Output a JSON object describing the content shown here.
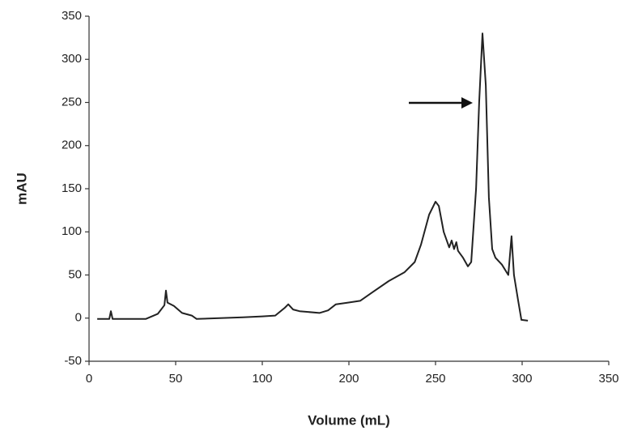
{
  "chart_data": {
    "type": "line",
    "x_label": "Volume (mL)",
    "y_label": "mAU",
    "xlim": [
      0,
      350
    ],
    "xticks": [
      0,
      50,
      100,
      200,
      250,
      300,
      350
    ],
    "ylim": [
      -50,
      350
    ],
    "yticks": [
      -50,
      0,
      50,
      100,
      150,
      200,
      250,
      300,
      350
    ],
    "grid": false,
    "series": [
      {
        "color": "#222222",
        "x": [
          4.7,
          11.7,
          12.6,
          13.6,
          32.7,
          39.7,
          43.5,
          44.4,
          45.3,
          49,
          53.7,
          59.3,
          62.1,
          88.8,
          100,
          115,
          126,
          130,
          135.5,
          143,
          166,
          176,
          185,
          199,
          206.5,
          213.6,
          223,
          232,
          238,
          241.6,
          246.3,
          250,
          251.9,
          254.7,
          257.9,
          259.3,
          260.7,
          262,
          263,
          265.9,
          268.7,
          270.6,
          273.4,
          275.2,
          277.1,
          279,
          280.8,
          282.7,
          284.6,
          288.3,
          292,
          293.9,
          295.3,
          297.7,
          299.6,
          303.3
        ],
        "values": [
          -1,
          -1,
          8,
          -1,
          -1,
          5,
          15,
          32,
          18,
          14,
          6,
          3,
          -1,
          1,
          2,
          3,
          12,
          16,
          10,
          8,
          6,
          9,
          16,
          18,
          20,
          30,
          43,
          53,
          65,
          85,
          120,
          135,
          130,
          100,
          82,
          90,
          80,
          88,
          78,
          70,
          60,
          65,
          150,
          250,
          330,
          270,
          140,
          80,
          70,
          62,
          50,
          95,
          50,
          20,
          -2,
          -3
        ]
      }
    ]
  }
}
